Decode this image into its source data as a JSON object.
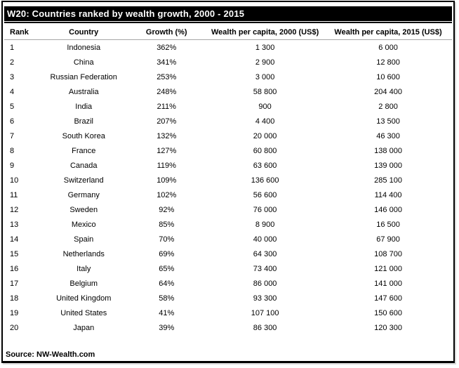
{
  "chart_data": {
    "type": "table",
    "title": "W20: Countries ranked by wealth growth, 2000 - 2015",
    "columns": [
      "Rank",
      "Country",
      "Growth (%)",
      "Wealth per capita, 2000 (US$)",
      "Wealth per capita, 2015 (US$)"
    ],
    "rows": [
      [
        "1",
        "Indonesia",
        "362%",
        "1 300",
        "6 000"
      ],
      [
        "2",
        "China",
        "341%",
        "2 900",
        "12 800"
      ],
      [
        "3",
        "Russian Federation",
        "253%",
        "3 000",
        "10 600"
      ],
      [
        "4",
        "Australia",
        "248%",
        "58 800",
        "204 400"
      ],
      [
        "5",
        "India",
        "211%",
        "900",
        "2 800"
      ],
      [
        "6",
        "Brazil",
        "207%",
        "4 400",
        "13 500"
      ],
      [
        "7",
        "South Korea",
        "132%",
        "20 000",
        "46 300"
      ],
      [
        "8",
        "France",
        "127%",
        "60 800",
        "138 000"
      ],
      [
        "9",
        "Canada",
        "119%",
        "63 600",
        "139 000"
      ],
      [
        "10",
        "Switzerland",
        "109%",
        "136 600",
        "285 100"
      ],
      [
        "11",
        "Germany",
        "102%",
        "56 600",
        "114 400"
      ],
      [
        "12",
        "Sweden",
        "92%",
        "76 000",
        "146 000"
      ],
      [
        "13",
        "Mexico",
        "85%",
        "8 900",
        "16 500"
      ],
      [
        "14",
        "Spain",
        "70%",
        "40 000",
        "67 900"
      ],
      [
        "15",
        "Netherlands",
        "69%",
        "64 300",
        "108 700"
      ],
      [
        "16",
        "Italy",
        "65%",
        "73 400",
        "121 000"
      ],
      [
        "17",
        "Belgium",
        "64%",
        "86 000",
        "141 000"
      ],
      [
        "18",
        "United Kingdom",
        "58%",
        "93 300",
        "147 600"
      ],
      [
        "19",
        "United States",
        "41%",
        "107 100",
        "150 600"
      ],
      [
        "20",
        "Japan",
        "39%",
        "86 300",
        "120 300"
      ]
    ],
    "source": "Source: NW-Wealth.com",
    "colors": {
      "title_bar_bg": "#000000",
      "title_bar_text": "#ffffff",
      "divider": "#a6a6a6"
    },
    "layout": {
      "grid": "off",
      "row_borders": "none",
      "rank_align": "left",
      "value_align": "center"
    }
  }
}
